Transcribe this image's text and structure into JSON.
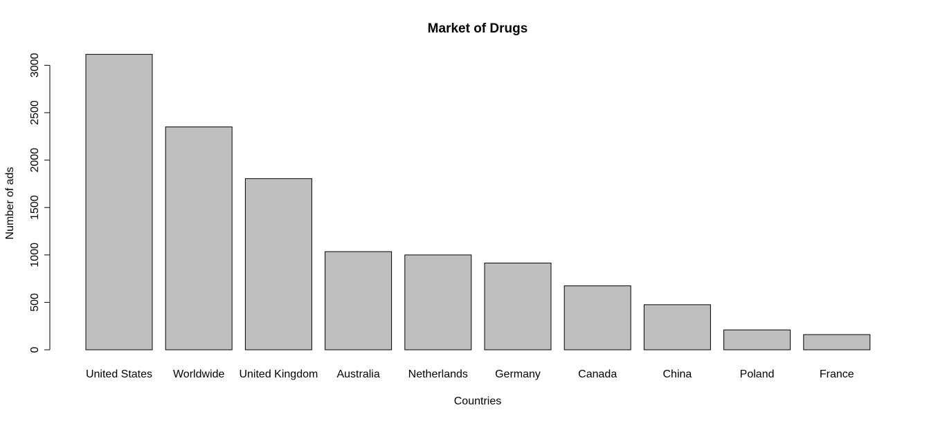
{
  "chart_data": {
    "type": "bar",
    "title": "Market of Drugs",
    "xlabel": "Countries",
    "ylabel": "Number of ads",
    "categories": [
      "United States",
      "Worldwide",
      "United Kingdom",
      "Australia",
      "Netherlands",
      "Germany",
      "Canada",
      "China",
      "Poland",
      "France"
    ],
    "values": [
      3115,
      2350,
      1805,
      1035,
      1000,
      915,
      675,
      475,
      210,
      160
    ],
    "yticks": [
      0,
      500,
      1000,
      1500,
      2000,
      2500,
      3000
    ],
    "ylim": [
      0,
      3115
    ],
    "grid": false,
    "bar_color": "#bebebe",
    "bar_border_color": "#000000"
  }
}
